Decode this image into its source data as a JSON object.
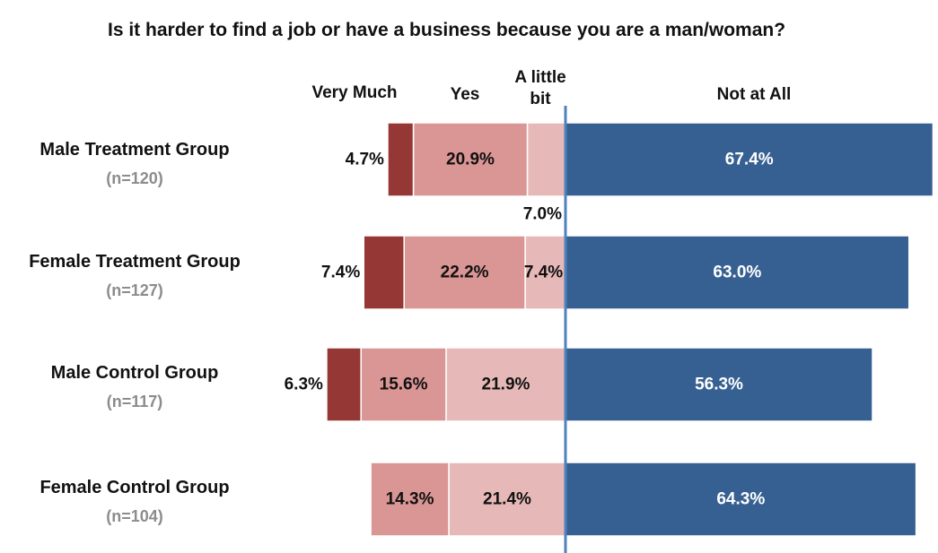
{
  "chart_data": {
    "type": "bar",
    "title": "Is it harder to find a job or have a business because you are a man/woman?",
    "segment_headers": [
      "Very Much",
      "Yes",
      "A little bit",
      "Not at All"
    ],
    "categories": [
      "Male Treatment Group",
      "Female Treatment Group",
      "Male Control Group",
      "Female Control Group"
    ],
    "sample_sizes": [
      "(n=120)",
      "(n=127)",
      "(n=117)",
      "(n=104)"
    ],
    "series": [
      {
        "name": "Very Much",
        "values": [
          4.7,
          7.4,
          6.3,
          0
        ],
        "labels": [
          "4.7%",
          "7.4%",
          "6.3%",
          ""
        ],
        "color": "#953735"
      },
      {
        "name": "Yes",
        "values": [
          20.9,
          22.2,
          15.6,
          14.3
        ],
        "labels": [
          "20.9%",
          "22.2%",
          "15.6%",
          "14.3%"
        ],
        "color": "#da9694"
      },
      {
        "name": "A little bit",
        "values": [
          7.0,
          7.4,
          21.9,
          21.4
        ],
        "labels": [
          "7.0%",
          "7.4%",
          "21.9%",
          "21.4%"
        ],
        "color": "#e6b9b8"
      },
      {
        "name": "Not at All",
        "values": [
          67.4,
          63.0,
          56.3,
          64.3
        ],
        "labels": [
          "67.4%",
          "63.0%",
          "56.3%",
          "64.3%"
        ],
        "color": "#376092"
      }
    ],
    "divider_color": "#4f81bd",
    "orientation": "horizontal",
    "layout": "diverging-stacked",
    "xlabel": "",
    "ylabel": ""
  }
}
